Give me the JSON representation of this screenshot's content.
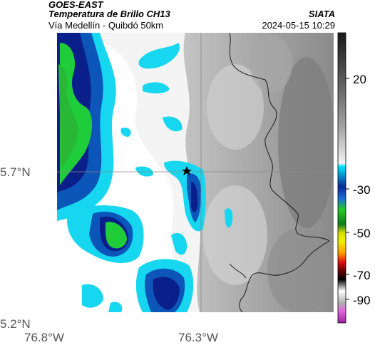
{
  "header": {
    "satellite": "GOES-EAST",
    "product": "Temperatura de Brillo CH13",
    "route": "Vía Medellín - Quibdó 50km",
    "organization": "SIATA",
    "timestamp": "2024-05-15 10:29"
  },
  "axes": {
    "lat_ticks": [
      "5.7°N",
      "5.2°N"
    ],
    "lon_ticks": [
      "76.8°W",
      "76.3°W"
    ]
  },
  "colorbar": {
    "labels": [
      "20",
      "-30",
      "-50",
      "-70",
      "-90"
    ],
    "scale_colors": {
      "warm_gray": "#5a5a5a",
      "cold_cyan": "#00e0ff",
      "blue": "#0a2a9a",
      "green": "#22cc22",
      "yellow": "#f0f000",
      "red": "#e01010",
      "black": "#000000",
      "magenta": "#c040c0"
    }
  },
  "map": {
    "marker": "star-icon",
    "cloud_colors": {
      "white": "#ffffff",
      "light_gray": "#d8d8d8",
      "mid_gray": "#b0b0b0",
      "cyan": "#16d6f0",
      "blue": "#0b56b8",
      "dark_blue": "#0a1f8a",
      "green": "#1fcc3a"
    }
  }
}
